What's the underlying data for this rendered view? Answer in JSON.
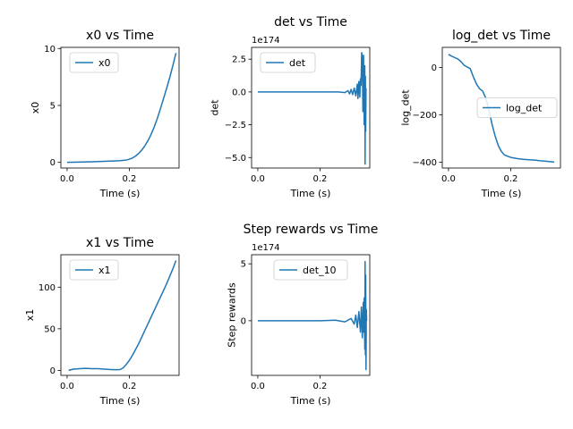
{
  "figure": {
    "chart_data": [
      {
        "type": "line",
        "title": "x0 vs Time",
        "xlabel": "Time (s)",
        "ylabel": "x0",
        "xlim": [
          -0.02,
          0.36
        ],
        "ylim": [
          -0.5,
          10.1
        ],
        "xticks": [
          0.0,
          0.2
        ],
        "xtick_labels": [
          "0.0",
          "0.2"
        ],
        "yticks": [
          0,
          5,
          10
        ],
        "ytick_labels": [
          "0",
          "5",
          "10"
        ],
        "legend": {
          "loc": "upper-left"
        },
        "series": [
          {
            "name": "x0",
            "x": [
              0.0,
              0.02,
              0.05,
              0.08,
              0.1,
              0.12,
              0.15,
              0.17,
              0.19,
              0.2,
              0.21,
              0.22,
              0.23,
              0.24,
              0.25,
              0.26,
              0.27,
              0.28,
              0.29,
              0.3,
              0.31,
              0.32,
              0.33,
              0.34,
              0.35
            ],
            "y": [
              0.0,
              0.01,
              0.03,
              0.05,
              0.07,
              0.09,
              0.12,
              0.15,
              0.2,
              0.27,
              0.38,
              0.55,
              0.78,
              1.08,
              1.45,
              1.9,
              2.45,
              3.1,
              3.85,
              4.7,
              5.6,
              6.5,
              7.45,
              8.5,
              9.6
            ]
          }
        ]
      },
      {
        "type": "line",
        "title": "det vs Time",
        "xlabel": "Time (s)",
        "ylabel": "det",
        "y_offset_label": "1e174",
        "xlim": [
          -0.02,
          0.36
        ],
        "ylim": [
          -5.8,
          3.4
        ],
        "xticks": [
          0.0,
          0.2
        ],
        "xtick_labels": [
          "0.0",
          "0.2"
        ],
        "yticks": [
          -5.0,
          -2.5,
          0.0,
          2.5
        ],
        "ytick_labels": [
          "−5.0",
          "−2.5",
          "0.0",
          "2.5"
        ],
        "legend": {
          "loc": "upper-left"
        },
        "series": [
          {
            "name": "det",
            "x": [
              0.0,
              0.1,
              0.2,
              0.26,
              0.28,
              0.29,
              0.295,
              0.3,
              0.305,
              0.31,
              0.315,
              0.32,
              0.322,
              0.325,
              0.328,
              0.33,
              0.332,
              0.334,
              0.336,
              0.338,
              0.34,
              0.342,
              0.344,
              0.345,
              0.346,
              0.347,
              0.348
            ],
            "y": [
              0.0,
              0.0,
              0.0,
              0.0,
              -0.05,
              0.1,
              -0.15,
              0.2,
              -0.2,
              0.3,
              -0.3,
              0.6,
              -0.5,
              0.8,
              -0.4,
              1.0,
              0.5,
              3.0,
              2.6,
              -1.5,
              2.8,
              -2.5,
              2.0,
              -5.5,
              1.2,
              -3.0,
              0.3
            ]
          }
        ]
      },
      {
        "type": "line",
        "title": "log_det vs Time",
        "xlabel": "Time (s)",
        "ylabel": "log_det",
        "xlim": [
          -0.02,
          0.36
        ],
        "ylim": [
          -425,
          85
        ],
        "xticks": [
          0.0,
          0.2
        ],
        "xtick_labels": [
          "0.0",
          "0.2"
        ],
        "yticks": [
          -400,
          -200,
          0
        ],
        "ytick_labels": [
          "−400",
          "−200",
          "0"
        ],
        "legend": {
          "loc": "center-right"
        },
        "series": [
          {
            "name": "log_det",
            "x": [
              0.0,
              0.01,
              0.02,
              0.03,
              0.04,
              0.05,
              0.06,
              0.07,
              0.08,
              0.09,
              0.1,
              0.11,
              0.12,
              0.13,
              0.14,
              0.15,
              0.16,
              0.17,
              0.18,
              0.2,
              0.22,
              0.24,
              0.26,
              0.28,
              0.3,
              0.32,
              0.34
            ],
            "y": [
              55,
              48,
              42,
              36,
              25,
              10,
              2,
              -5,
              -40,
              -70,
              -90,
              -100,
              -130,
              -180,
              -240,
              -290,
              -330,
              -355,
              -370,
              -380,
              -385,
              -388,
              -390,
              -392,
              -395,
              -397,
              -400
            ]
          }
        ]
      },
      {
        "type": "line",
        "title": "x1 vs Time",
        "xlabel": "Time (s)",
        "ylabel": "x1",
        "xlim": [
          -0.02,
          0.36
        ],
        "ylim": [
          -6,
          139
        ],
        "xticks": [
          0.0,
          0.2
        ],
        "xtick_labels": [
          "0.0",
          "0.2"
        ],
        "yticks": [
          0,
          50,
          100
        ],
        "ytick_labels": [
          "0",
          "50",
          "100"
        ],
        "legend": {
          "loc": "upper-left"
        },
        "series": [
          {
            "name": "x1",
            "x": [
              0.005,
              0.02,
              0.04,
              0.06,
              0.08,
              0.1,
              0.12,
              0.14,
              0.16,
              0.17,
              0.18,
              0.19,
              0.2,
              0.21,
              0.22,
              0.23,
              0.24,
              0.25,
              0.26,
              0.27,
              0.28,
              0.29,
              0.3,
              0.31,
              0.32,
              0.33,
              0.34,
              0.35
            ],
            "y": [
              0.0,
              1.5,
              2.0,
              2.5,
              2.0,
              2.0,
              1.5,
              1.0,
              0.8,
              1.0,
              3.0,
              7.0,
              12.0,
              18.0,
              25.0,
              32.0,
              40.0,
              48.0,
              56.0,
              64.0,
              72.0,
              80.0,
              88.0,
              96.0,
              104.0,
              113.0,
              122.0,
              132.0
            ]
          }
        ]
      },
      {
        "type": "line",
        "title": "Step rewards vs Time",
        "xlabel": "Time (s)",
        "ylabel": "Step rewards",
        "y_offset_label": "1e174",
        "xlim": [
          -0.02,
          0.36
        ],
        "ylim": [
          -4.8,
          5.8
        ],
        "xticks": [
          0.0,
          0.2
        ],
        "xtick_labels": [
          "0.0",
          "0.2"
        ],
        "yticks": [
          0,
          5
        ],
        "ytick_labels": [
          "0",
          "5"
        ],
        "legend": {
          "loc": "upper-center"
        },
        "series": [
          {
            "name": "det_10",
            "x": [
              0.0,
              0.1,
              0.2,
              0.25,
              0.28,
              0.3,
              0.31,
              0.315,
              0.32,
              0.325,
              0.33,
              0.333,
              0.336,
              0.339,
              0.34,
              0.342,
              0.344,
              0.345,
              0.346,
              0.347,
              0.348,
              0.349,
              0.35
            ],
            "y": [
              0.0,
              0.0,
              0.0,
              0.05,
              -0.1,
              0.2,
              -0.3,
              0.5,
              -0.6,
              0.8,
              -1.0,
              1.2,
              -1.5,
              1.6,
              -1.0,
              2.0,
              -2.5,
              5.2,
              -3.0,
              4.0,
              -4.3,
              1.0,
              0.0
            ]
          }
        ]
      }
    ]
  }
}
